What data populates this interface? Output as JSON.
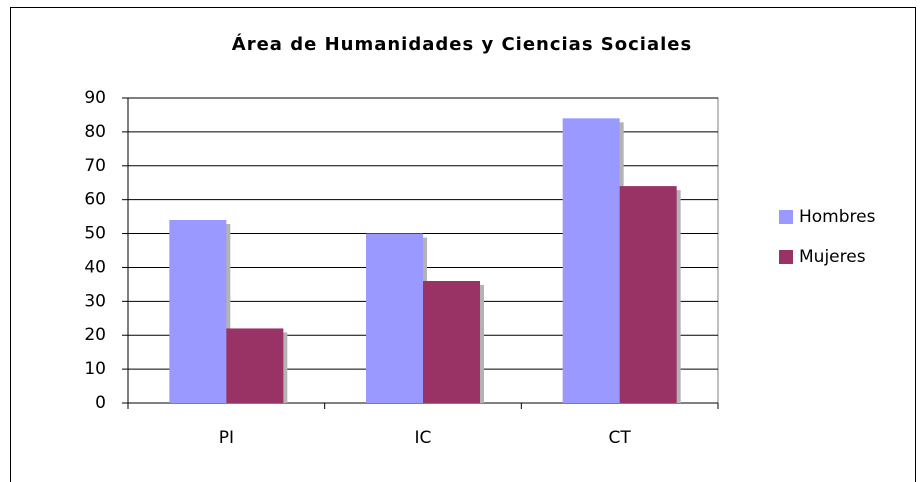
{
  "chart_data": {
    "type": "bar",
    "title": "Área de Humanidades y Ciencias Sociales",
    "categories": [
      "PI",
      "IC",
      "CT"
    ],
    "series": [
      {
        "name": "Hombres",
        "color": "#9999ff",
        "values": [
          54,
          50,
          84
        ]
      },
      {
        "name": "Mujeres",
        "color": "#993366",
        "values": [
          22,
          36,
          64
        ]
      }
    ],
    "ylim": [
      0,
      90
    ],
    "yticks": [
      0,
      10,
      20,
      30,
      40,
      50,
      60,
      70,
      80,
      90
    ],
    "grid": true,
    "legend": "right"
  }
}
